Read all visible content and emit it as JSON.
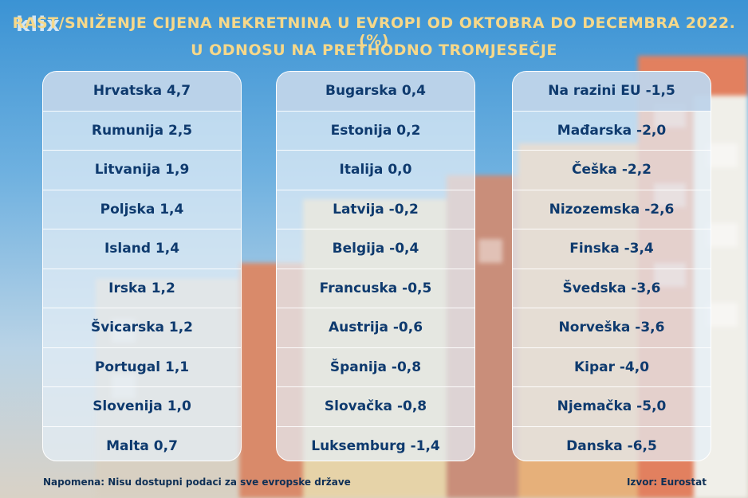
{
  "logo": "klix",
  "title_line1": "RAST/SNIŽENJE CIJENA NEKRETNINA U EVROPI OD OKTOBRA DO DECEMBRA 2022. (%)",
  "title_line2": "U ODNOSU NA PRETHODNO TROMJESEČJE",
  "columns": [
    [
      "Hrvatska 4,7",
      "Rumunija 2,5",
      "Litvanija 1,9",
      "Poljska 1,4",
      "Island 1,4",
      "Irska 1,2",
      "Švicarska 1,2",
      "Portugal 1,1",
      "Slovenija 1,0",
      "Malta 0,7"
    ],
    [
      "Bugarska 0,4",
      "Estonija 0,2",
      "Italija 0,0",
      "Latvija -0,2",
      "Belgija -0,4",
      "Francuska -0,5",
      "Austrija -0,6",
      "Španija -0,8",
      "Slovačka -0,8",
      "Luksemburg -1,4"
    ],
    [
      "Na razini EU -1,5",
      "Mađarska -2,0",
      "Češka -2,2",
      "Nizozemska -2,6",
      "Finska -3,4",
      "Švedska -3,6",
      "Norveška -3,6",
      "Kipar -4,0",
      "Njemačka -5,0",
      "Danska -6,5"
    ]
  ],
  "note": "Napomena: Nisu dostupni podaci za sve evropske države",
  "source": "Izvor: Eurostat"
}
